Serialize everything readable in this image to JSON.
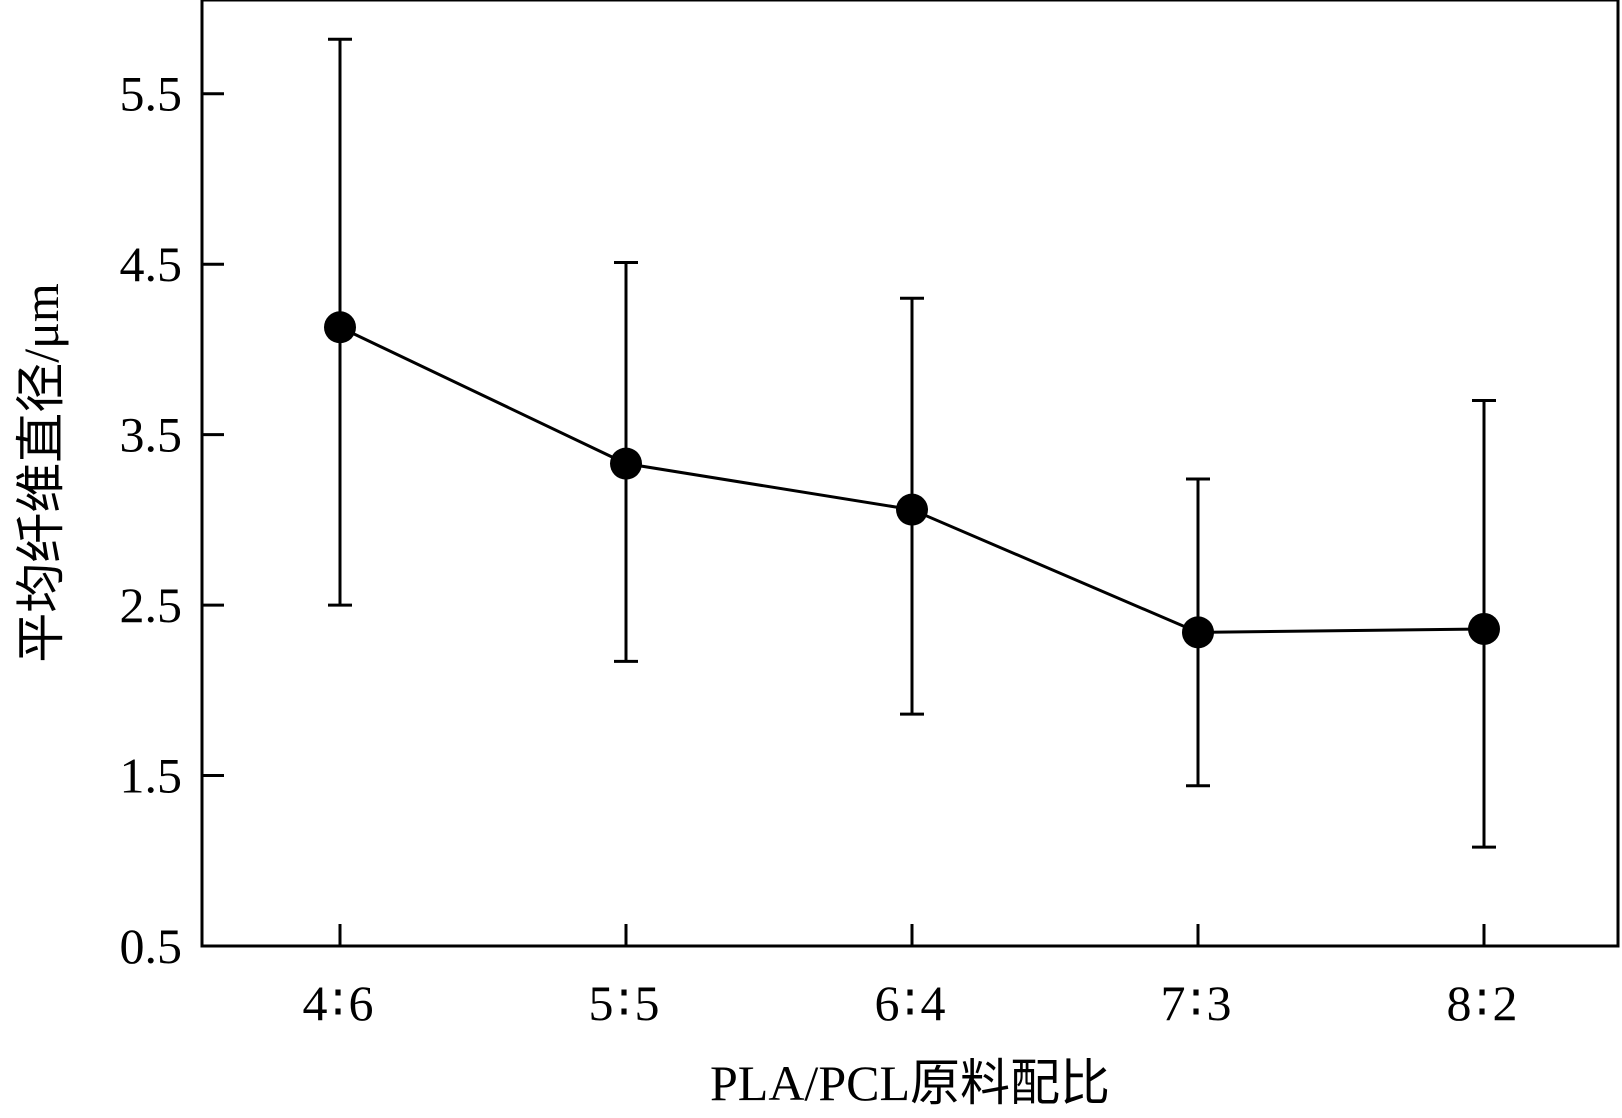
{
  "chart_data": {
    "type": "line",
    "title": "",
    "xlabel": "PLA/PCL原料配比",
    "ylabel": "平均纤维直径/μm",
    "categories": [
      "4∶6",
      "5∶5",
      "6∶4",
      "7∶3",
      "8∶2"
    ],
    "series": [
      {
        "values": [
          4.13,
          3.33,
          3.06,
          2.34,
          2.36
        ],
        "error_low": [
          2.5,
          2.17,
          1.86,
          1.44,
          1.08
        ],
        "error_high": [
          5.82,
          4.51,
          4.3,
          3.24,
          3.7
        ]
      }
    ],
    "ylim": [
      0.5,
      6.05
    ],
    "yticks": [
      0.5,
      1.5,
      2.5,
      3.5,
      4.5,
      5.5
    ],
    "ytick_labels": [
      "0.5",
      "1.5",
      "2.5",
      "3.5",
      "4.5",
      "5.5"
    ],
    "grid": false,
    "legend": "none",
    "colors": {
      "line": "#000000",
      "marker": "#000000",
      "background": "#ffffff"
    }
  }
}
